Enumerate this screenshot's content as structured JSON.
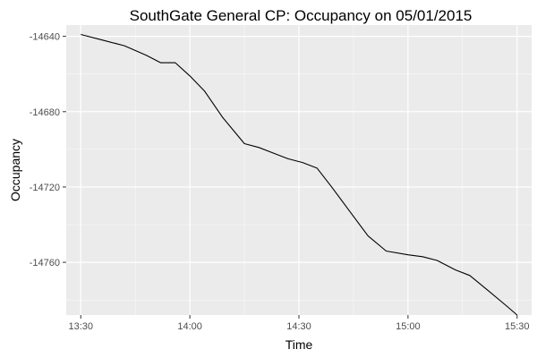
{
  "chart_data": {
    "type": "line",
    "title": "SouthGate General CP: Occupancy on 05/01/2015",
    "xlabel": "Time",
    "ylabel": "Occupancy",
    "x_tick_labels": [
      "13:30",
      "14:00",
      "14:30",
      "15:00",
      "15:30"
    ],
    "x_ticks_minutes": [
      810,
      840,
      870,
      900,
      930
    ],
    "xlim_minutes": [
      806,
      934
    ],
    "y_ticks": [
      -14640,
      -14680,
      -14720,
      -14760
    ],
    "ylim": [
      -14788,
      -14634
    ],
    "grid": true,
    "series": [
      {
        "name": "",
        "color": "#000000",
        "x": [
          "13:30",
          "13:36",
          "13:42",
          "13:48",
          "13:52",
          "13:56",
          "14:00",
          "14:04",
          "14:09",
          "14:15",
          "14:19",
          "14:23",
          "14:27",
          "14:31",
          "14:35",
          "14:39",
          "14:44",
          "14:49",
          "14:54",
          "15:00",
          "15:04",
          "15:08",
          "15:13",
          "15:17",
          "15:22",
          "15:27",
          "15:30"
        ],
        "x_minutes": [
          810,
          816,
          822,
          828,
          832,
          836,
          840,
          844,
          849,
          855,
          859,
          863,
          867,
          871,
          875,
          879,
          884,
          889,
          894,
          900,
          904,
          908,
          913,
          917,
          922,
          927,
          930
        ],
        "values": [
          -14639,
          -14642,
          -14645,
          -14650,
          -14654,
          -14654,
          -14661,
          -14669,
          -14683,
          -14697,
          -14699,
          -14702,
          -14705,
          -14707,
          -14710,
          -14720,
          -14733,
          -14746,
          -14754,
          -14756,
          -14757,
          -14759,
          -14764,
          -14767,
          -14775,
          -14783,
          -14788
        ]
      }
    ]
  },
  "colors": {
    "panel_background": "#ebebeb",
    "grid_major": "#ffffff",
    "line": "#000000",
    "tick_text": "#4d4d4d"
  }
}
